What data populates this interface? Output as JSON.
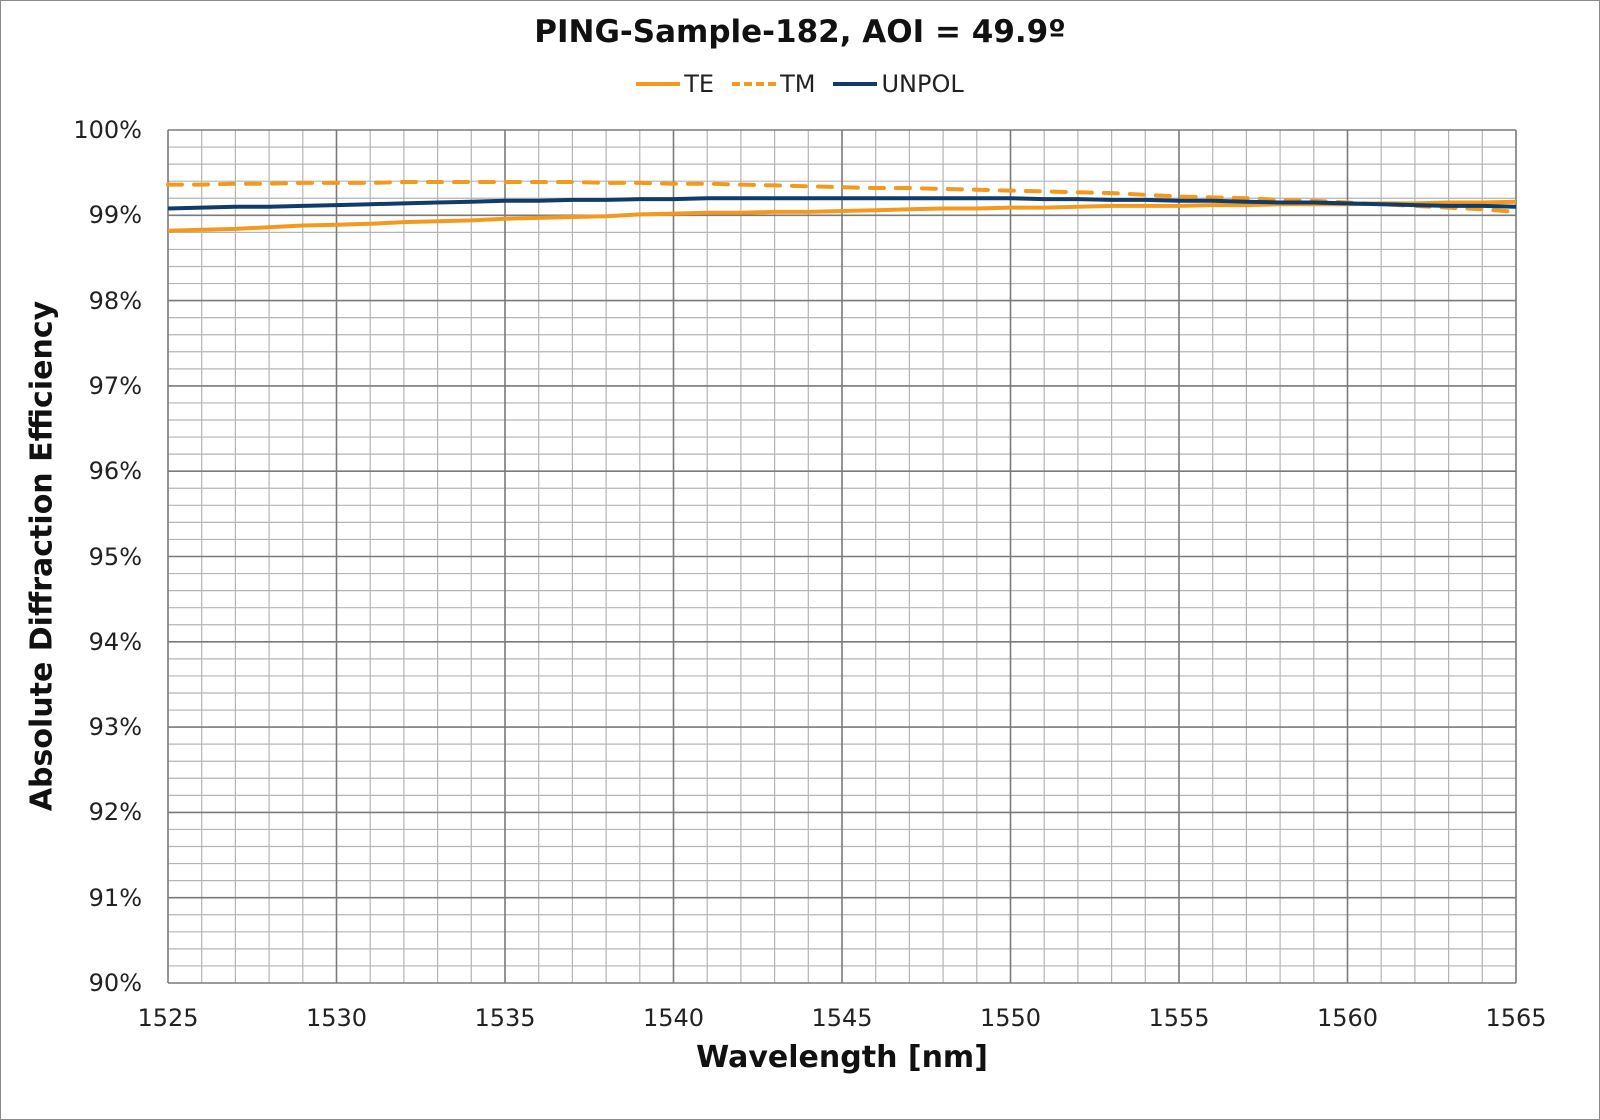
{
  "chart_data": {
    "type": "line",
    "title": "PING-Sample-182, AOI = 49.9º",
    "xlabel": "Wavelength [nm]",
    "ylabel": "Absolute Diffraction Efficiency",
    "xlim": [
      1525,
      1565
    ],
    "ylim": [
      90,
      100
    ],
    "x_ticks": [
      1525,
      1530,
      1535,
      1540,
      1545,
      1550,
      1555,
      1560,
      1565
    ],
    "y_ticks": [
      "90%",
      "91%",
      "92%",
      "93%",
      "94%",
      "95%",
      "96%",
      "97%",
      "98%",
      "99%",
      "100%"
    ],
    "grid": {
      "major_x_step": 5,
      "minor_x_step": 1,
      "major_y_step": 1,
      "minor_y_step": 0.2
    },
    "legend_position": "top",
    "x": [
      1525,
      1526,
      1527,
      1528,
      1529,
      1530,
      1531,
      1532,
      1533,
      1534,
      1535,
      1536,
      1537,
      1538,
      1539,
      1540,
      1541,
      1542,
      1543,
      1544,
      1545,
      1546,
      1547,
      1548,
      1549,
      1550,
      1551,
      1552,
      1553,
      1554,
      1555,
      1556,
      1557,
      1558,
      1559,
      1560,
      1561,
      1562,
      1563,
      1564,
      1565
    ],
    "series": [
      {
        "name": "TE",
        "color": "#F39A1E",
        "style": "solid",
        "values": [
          98.82,
          98.83,
          98.84,
          98.86,
          98.88,
          98.89,
          98.9,
          98.92,
          98.93,
          98.94,
          98.96,
          98.97,
          98.98,
          98.99,
          99.01,
          99.02,
          99.03,
          99.03,
          99.04,
          99.04,
          99.05,
          99.06,
          99.07,
          99.08,
          99.08,
          99.09,
          99.09,
          99.1,
          99.11,
          99.11,
          99.11,
          99.12,
          99.12,
          99.13,
          99.13,
          99.13,
          99.14,
          99.14,
          99.15,
          99.15,
          99.16
        ]
      },
      {
        "name": "TM",
        "color": "#F39A1E",
        "style": "dashed",
        "values": [
          99.36,
          99.36,
          99.37,
          99.37,
          99.38,
          99.38,
          99.38,
          99.39,
          99.39,
          99.39,
          99.39,
          99.39,
          99.39,
          99.38,
          99.38,
          99.37,
          99.37,
          99.36,
          99.35,
          99.34,
          99.33,
          99.32,
          99.32,
          99.31,
          99.3,
          99.29,
          99.28,
          99.27,
          99.26,
          99.24,
          99.22,
          99.21,
          99.2,
          99.18,
          99.17,
          99.15,
          99.13,
          99.11,
          99.09,
          99.07,
          99.04
        ]
      },
      {
        "name": "UNPOL",
        "color": "#0F3C6A",
        "style": "solid",
        "values": [
          99.08,
          99.09,
          99.1,
          99.1,
          99.11,
          99.12,
          99.13,
          99.14,
          99.15,
          99.16,
          99.17,
          99.17,
          99.18,
          99.18,
          99.19,
          99.19,
          99.2,
          99.2,
          99.2,
          99.2,
          99.2,
          99.2,
          99.2,
          99.2,
          99.2,
          99.2,
          99.19,
          99.19,
          99.18,
          99.18,
          99.17,
          99.17,
          99.16,
          99.15,
          99.15,
          99.14,
          99.13,
          99.12,
          99.11,
          99.11,
          99.1
        ]
      }
    ]
  },
  "legend": {
    "items": [
      {
        "label": "TE"
      },
      {
        "label": "TM"
      },
      {
        "label": "UNPOL"
      }
    ]
  }
}
